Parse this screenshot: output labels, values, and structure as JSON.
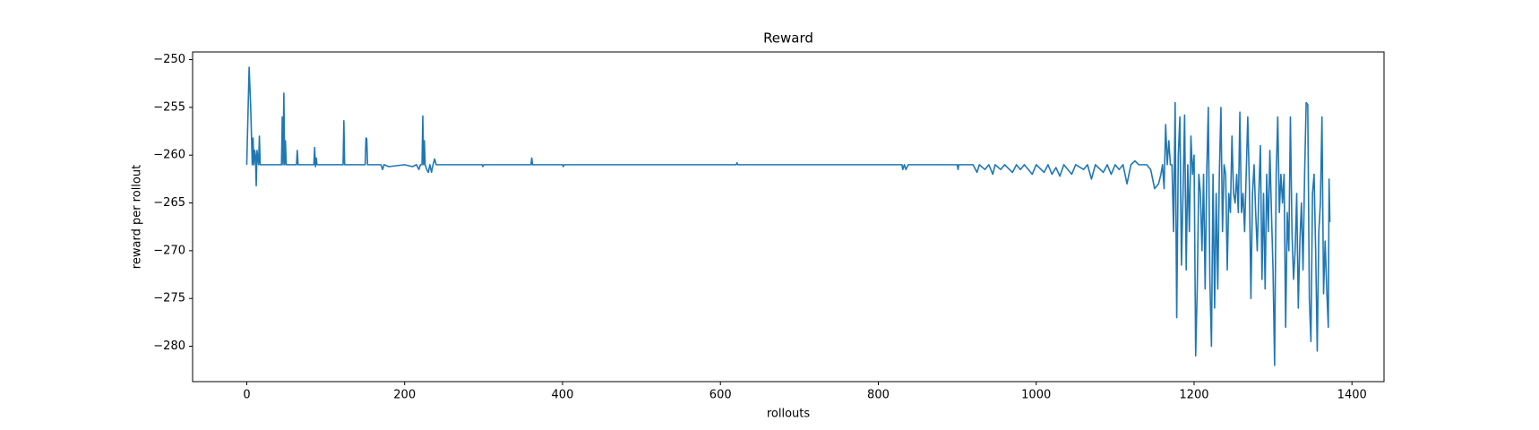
{
  "chart_data": {
    "type": "line",
    "title": "Reward",
    "xlabel": "rollouts",
    "ylabel": "reward per rollout",
    "xlim": [
      -68.6,
      1440.6
    ],
    "ylim": [
      -283.7,
      -249.2
    ],
    "xticks": [
      0,
      200,
      400,
      600,
      800,
      1000,
      1200,
      1400
    ],
    "yticks": [
      {
        "value": -250,
        "label": "−250"
      },
      {
        "value": -255,
        "label": "−255"
      },
      {
        "value": -260,
        "label": "−260"
      },
      {
        "value": -265,
        "label": "−265"
      },
      {
        "value": -270,
        "label": "−270"
      },
      {
        "value": -275,
        "label": "−275"
      },
      {
        "value": -280,
        "label": "−280"
      }
    ],
    "grid": false,
    "x": [
      0,
      3,
      5,
      7,
      8,
      9,
      10,
      11,
      12,
      13,
      15,
      16,
      17,
      44,
      45,
      46,
      47,
      48,
      49,
      50,
      63,
      64,
      65,
      85,
      86,
      87,
      88,
      89,
      122,
      123,
      124,
      150,
      151,
      152,
      153,
      170,
      172,
      174,
      180,
      200,
      210,
      215,
      218,
      220,
      222,
      223,
      224,
      225,
      226,
      228,
      230,
      232,
      234,
      236,
      238,
      240,
      298,
      299,
      300,
      360,
      361,
      362,
      400,
      401,
      402,
      620,
      621,
      622,
      830,
      831,
      833,
      835,
      838,
      900,
      901,
      902,
      920,
      925,
      928,
      935,
      940,
      945,
      948,
      955,
      960,
      970,
      975,
      980,
      985,
      995,
      1000,
      1010,
      1015,
      1020,
      1025,
      1030,
      1035,
      1045,
      1050,
      1060,
      1065,
      1070,
      1075,
      1085,
      1090,
      1095,
      1100,
      1105,
      1110,
      1115,
      1120,
      1125,
      1130,
      1140,
      1145,
      1150,
      1155,
      1158,
      1160,
      1162,
      1164,
      1166,
      1168,
      1170,
      1172,
      1174,
      1176,
      1178,
      1180,
      1182,
      1184,
      1186,
      1188,
      1190,
      1192,
      1194,
      1196,
      1198,
      1200,
      1202,
      1204,
      1206,
      1208,
      1210,
      1212,
      1214,
      1216,
      1218,
      1220,
      1222,
      1224,
      1226,
      1228,
      1230,
      1232,
      1234,
      1236,
      1238,
      1240,
      1242,
      1244,
      1246,
      1248,
      1250,
      1252,
      1254,
      1256,
      1258,
      1260,
      1262,
      1264,
      1266,
      1268,
      1270,
      1272,
      1274,
      1276,
      1278,
      1280,
      1282,
      1284,
      1286,
      1288,
      1290,
      1292,
      1294,
      1296,
      1298,
      1300,
      1302,
      1304,
      1306,
      1308,
      1310,
      1312,
      1314,
      1316,
      1318,
      1320,
      1322,
      1324,
      1326,
      1328,
      1330,
      1332,
      1334,
      1336,
      1338,
      1340,
      1342,
      1344,
      1346,
      1348,
      1350,
      1352,
      1354,
      1356,
      1358,
      1360,
      1362,
      1364,
      1366,
      1368,
      1370,
      1371,
      1372
    ],
    "series": [
      {
        "name": "reward",
        "color": "#1f77b4",
        "values": [
          -261,
          -250.8,
          -255,
          -261,
          -258.2,
          -261,
          -259.5,
          -260,
          -263.2,
          -259.5,
          -261,
          -258,
          -261,
          -261,
          -256,
          -261,
          -253.5,
          -261,
          -258.5,
          -261,
          -261,
          -259.5,
          -261,
          -261,
          -259.2,
          -261.2,
          -260.3,
          -261,
          -261,
          -256.4,
          -261,
          -261,
          -258.2,
          -258.3,
          -261,
          -261,
          -261.5,
          -261,
          -261.2,
          -261,
          -261.2,
          -261,
          -261.5,
          -261,
          -261,
          -255.9,
          -261,
          -258.5,
          -261,
          -261.5,
          -261.8,
          -261,
          -261.8,
          -261,
          -260.4,
          -261,
          -261,
          -261.2,
          -261,
          -261,
          -260.3,
          -261,
          -261,
          -261.2,
          -261,
          -261,
          -260.8,
          -261,
          -261,
          -261.5,
          -261,
          -261.5,
          -261,
          -261,
          -261.5,
          -261,
          -261,
          -261.8,
          -261,
          -261.5,
          -261,
          -262,
          -261,
          -261.5,
          -261,
          -261.8,
          -261,
          -261.5,
          -261,
          -262,
          -261,
          -261.8,
          -261,
          -262,
          -261.3,
          -262.2,
          -261,
          -262,
          -261,
          -261.5,
          -261,
          -262.5,
          -261,
          -261.8,
          -261,
          -262,
          -261,
          -261.5,
          -261,
          -263,
          -261,
          -260.6,
          -261,
          -261,
          -261.5,
          -263.5,
          -263,
          -262,
          -261,
          -263.5,
          -256.8,
          -261,
          -258.5,
          -261,
          -261,
          -268,
          -254.5,
          -277,
          -260,
          -256,
          -271.5,
          -264,
          -255.8,
          -272,
          -261,
          -268,
          -258,
          -262,
          -260,
          -281,
          -274,
          -262,
          -264,
          -270,
          -262,
          -274,
          -262,
          -255,
          -273,
          -280,
          -262,
          -276,
          -264,
          -274,
          -262,
          -255,
          -268,
          -261,
          -262,
          -272,
          -264,
          -266,
          -258,
          -264,
          -265,
          -262,
          -266,
          -255.5,
          -266,
          -264,
          -268,
          -262,
          -256,
          -263,
          -275,
          -264,
          -261,
          -266,
          -270,
          -264,
          -259,
          -273,
          -264,
          -274,
          -262,
          -268,
          -259.5,
          -266,
          -272,
          -282,
          -262,
          -256,
          -266,
          -262,
          -265,
          -262,
          -278,
          -266,
          -270,
          -256,
          -268,
          -273,
          -270,
          -264,
          -276,
          -269,
          -265,
          -272,
          -262,
          -254.5,
          -254.7,
          -275,
          -279.5,
          -264,
          -262,
          -270,
          -280.5,
          -268,
          -265,
          -256,
          -274.5,
          -269,
          -274,
          -278,
          -262.5,
          -267
        ]
      }
    ]
  }
}
